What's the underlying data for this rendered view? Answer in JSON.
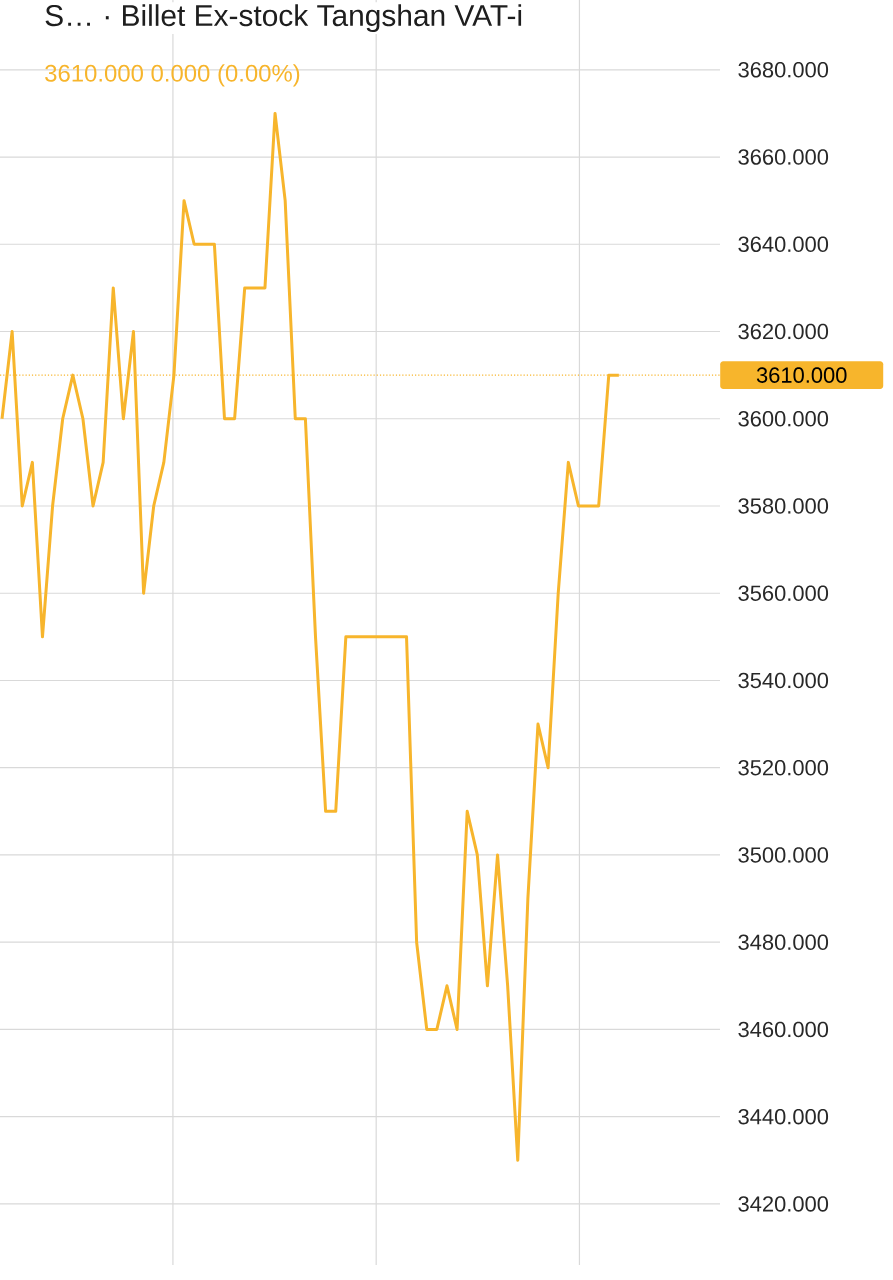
{
  "chart_data": {
    "type": "line",
    "title": "S… · Billet Ex-stock Tangshan VAT-i",
    "subtitle": "3610.000  0.000 (0.00%)",
    "categories": [
      null,
      null,
      null,
      null,
      null,
      null,
      null,
      null,
      null,
      null,
      null,
      null,
      null,
      null,
      null,
      null,
      null,
      null,
      null,
      null,
      null,
      null,
      null,
      null,
      null,
      null,
      null,
      null,
      null,
      null,
      null,
      null,
      null,
      null,
      null,
      null,
      null,
      null,
      null,
      null,
      null,
      null,
      null,
      null,
      null,
      null,
      null,
      null,
      null,
      null,
      null,
      null,
      null,
      null,
      null,
      null,
      null,
      null,
      null,
      null,
      null,
      null
    ],
    "series": [
      {
        "color": "#f7b52c",
        "values": [
          3600,
          3620,
          3580,
          3590,
          3550,
          3580,
          3600,
          3610,
          3600,
          3580,
          3590,
          3630,
          3600,
          3620,
          3560,
          3580,
          3590,
          3610,
          3650,
          3640,
          3640,
          3640,
          3600,
          3600,
          3630,
          3630,
          3630,
          3670,
          3650,
          3600,
          3600,
          3550,
          3510,
          3510,
          3550,
          3550,
          3550,
          3550,
          3550,
          3550,
          3550,
          3480,
          3460,
          3460,
          3470,
          3460,
          3510,
          3500,
          3470,
          3500,
          3470,
          3430,
          3490,
          3530,
          3520,
          3560,
          3590,
          3580,
          3580,
          3580,
          3610,
          3610
        ]
      }
    ],
    "ylim": [
      3406,
      3696
    ],
    "yticks": [
      {
        "value": 3420,
        "label": "3420.000"
      },
      {
        "value": 3440,
        "label": "3440.000"
      },
      {
        "value": 3460,
        "label": "3460.000"
      },
      {
        "value": 3480,
        "label": "3480.000"
      },
      {
        "value": 3500,
        "label": "3500.000"
      },
      {
        "value": 3520,
        "label": "3520.000"
      },
      {
        "value": 3540,
        "label": "3540.000"
      },
      {
        "value": 3560,
        "label": "3560.000"
      },
      {
        "value": 3580,
        "label": "3580.000"
      },
      {
        "value": 3600,
        "label": "3600.000"
      },
      {
        "value": 3620,
        "label": "3620.000"
      },
      {
        "value": 3640,
        "label": "3640.000"
      },
      {
        "value": 3660,
        "label": "3660.000"
      },
      {
        "value": 3680,
        "label": "3680.000"
      }
    ],
    "ref_lines": [
      {
        "axis": "y",
        "value": 3610,
        "label": "3610.000",
        "color": "#f7b52c",
        "line_style": "dotted"
      }
    ],
    "grid": true,
    "marker": "none",
    "line_style": "solid",
    "tick_labels": "y"
  }
}
